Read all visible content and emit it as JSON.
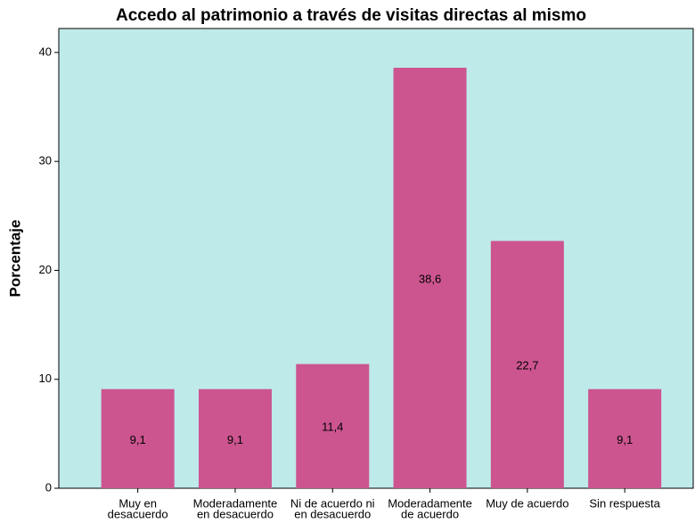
{
  "chart_data": {
    "type": "bar",
    "title": "Accedo al patrimonio a través de visitas directas al mismo",
    "y_label": "Porcentaje",
    "categories": [
      [
        "Muy en",
        "desacuerdo"
      ],
      [
        "Moderadamente",
        "en desacuerdo"
      ],
      [
        "Ni de acuerdo ni",
        "en desacuerdo"
      ],
      [
        "Moderadamente",
        "de acuerdo"
      ],
      [
        "Muy de acuerdo"
      ],
      [
        "Sin respuesta"
      ]
    ],
    "values": [
      9.1,
      9.1,
      11.4,
      38.6,
      22.7,
      9.1
    ],
    "value_labels": [
      "9,1",
      "9,1",
      "11,4",
      "38,6",
      "22,7",
      "9,1"
    ],
    "color": "#cc5590",
    "background": "#bfeaea",
    "ylim": [
      0,
      42.2
    ],
    "yticks": [
      0,
      10,
      20,
      30,
      40
    ]
  }
}
